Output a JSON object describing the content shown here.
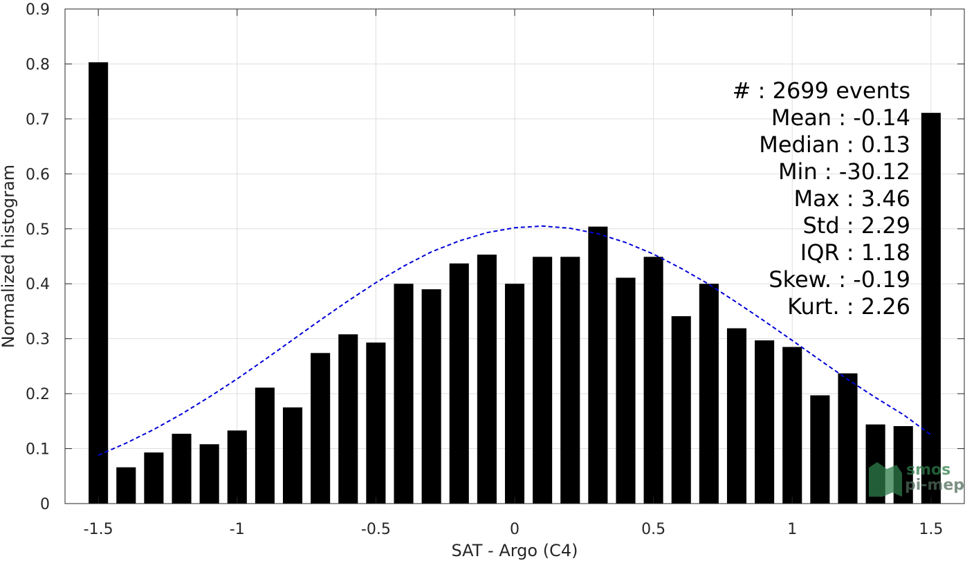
{
  "chart_data": {
    "type": "bar",
    "xlabel": "SAT - Argo (C4)",
    "ylabel": "Normalized histogram",
    "xlim": [
      -1.62,
      1.62
    ],
    "ylim": [
      0,
      0.9
    ],
    "grid": true,
    "x_ticks": [
      -1.5,
      -1,
      -0.5,
      0,
      0.5,
      1,
      1.5
    ],
    "x_tick_labels": [
      "-1.5",
      "-1",
      "-0.5",
      "0",
      "0.5",
      "1",
      "1.5"
    ],
    "y_ticks": [
      0,
      0.1,
      0.2,
      0.3,
      0.4,
      0.5,
      0.6,
      0.7,
      0.8,
      0.9
    ],
    "y_tick_labels": [
      "0",
      "0.1",
      "0.2",
      "0.3",
      "0.4",
      "0.5",
      "0.6",
      "0.7",
      "0.8",
      "0.9"
    ],
    "bar_width": 0.07,
    "bars": {
      "x": [
        -1.5,
        -1.4,
        -1.3,
        -1.2,
        -1.1,
        -1.0,
        -0.9,
        -0.8,
        -0.7,
        -0.6,
        -0.5,
        -0.4,
        -0.3,
        -0.2,
        -0.1,
        0.0,
        0.1,
        0.2,
        0.3,
        0.4,
        0.5,
        0.6,
        0.7,
        0.8,
        0.9,
        1.0,
        1.1,
        1.2,
        1.3,
        1.4,
        1.5
      ],
      "values": [
        0.803,
        0.066,
        0.093,
        0.127,
        0.108,
        0.133,
        0.211,
        0.175,
        0.274,
        0.308,
        0.293,
        0.4,
        0.39,
        0.437,
        0.453,
        0.4,
        0.449,
        0.449,
        0.504,
        0.411,
        0.449,
        0.341,
        0.4,
        0.319,
        0.297,
        0.285,
        0.197,
        0.237,
        0.144,
        0.141,
        0.711
      ]
    },
    "fit_curve": {
      "style": "dashed",
      "color": "#0000d8",
      "x": [
        -1.5,
        -1.4,
        -1.3,
        -1.2,
        -1.1,
        -1.0,
        -0.9,
        -0.8,
        -0.7,
        -0.6,
        -0.5,
        -0.4,
        -0.3,
        -0.2,
        -0.1,
        0.0,
        0.1,
        0.2,
        0.3,
        0.4,
        0.5,
        0.6,
        0.7,
        0.8,
        0.9,
        1.0,
        1.1,
        1.2,
        1.3,
        1.4,
        1.5
      ],
      "y": [
        0.088,
        0.11,
        0.135,
        0.163,
        0.194,
        0.227,
        0.262,
        0.298,
        0.334,
        0.369,
        0.402,
        0.432,
        0.458,
        0.478,
        0.493,
        0.502,
        0.505,
        0.501,
        0.491,
        0.475,
        0.454,
        0.428,
        0.399,
        0.366,
        0.332,
        0.297,
        0.261,
        0.226,
        0.193,
        0.162,
        0.125
      ]
    },
    "stats_annotation": [
      "#  : 2699 events",
      "Mean : -0.14",
      "Median : 0.13",
      "Min : -30.12",
      "Max : 3.46",
      "Std : 2.29",
      "IQR : 1.18",
      "Skew. : -0.19",
      "Kurt. : 2.26"
    ],
    "bar_color": "#000000"
  },
  "watermark": {
    "line1": "smos",
    "line2": "pi-mep",
    "color": "#2e7d4a"
  }
}
